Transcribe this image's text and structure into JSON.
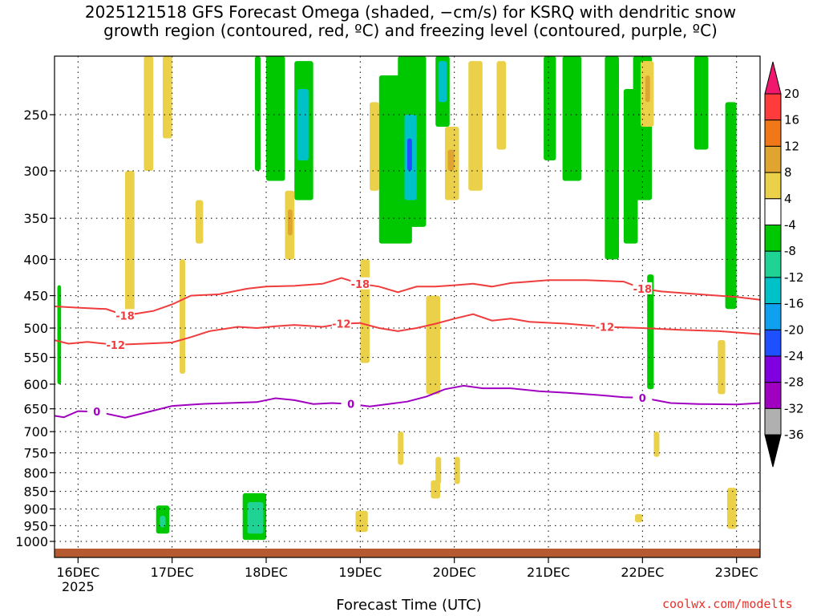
{
  "title_lines": [
    "2025121518 GFS Forecast Omega (shaded, −cm/s) for KSRQ with dendritic snow",
    "growth region (contoured, red, ºC) and freezing level (contoured, purple, ºC)"
  ],
  "credit": "coolwx.com/modelts",
  "chart_data": {
    "type": "heatmap",
    "title": "2025121518 GFS Forecast Omega (shaded, −cm/s) for KSRQ with dendritic snow growth region (contoured, red, ºC) and freezing level (contoured, purple, ºC)",
    "xlabel": "Forecast Time (UTC)",
    "ylabel": "",
    "x_ticks": [
      "16DEC",
      "17DEC",
      "18DEC",
      "19DEC",
      "20DEC",
      "21DEC",
      "22DEC",
      "23DEC"
    ],
    "x_tick_days": [
      16,
      17,
      18,
      19,
      20,
      21,
      22,
      23
    ],
    "x_year_label": "2025",
    "xlim_days": [
      15.75,
      23.25
    ],
    "y_ticks": [
      250,
      300,
      350,
      400,
      450,
      500,
      550,
      600,
      650,
      700,
      750,
      800,
      850,
      900,
      950,
      1000
    ],
    "ylim_hpa": [
      200,
      1030
    ],
    "y_scale": "log",
    "grid": true,
    "colorbar": {
      "labels": [
        "20",
        "16",
        "12",
        "8",
        "4",
        "-4",
        "-8",
        "-12",
        "-16",
        "-20",
        "-24",
        "-28",
        "-32",
        "-36"
      ],
      "colors": [
        "#ff3b3b",
        "#f07818",
        "#e0a530",
        "#ebd14a",
        "#ffffff",
        "#00c800",
        "#1fd394",
        "#00c0c8",
        "#10a0f0",
        "#1f50ff",
        "#8000e0",
        "#a000c0",
        "#b0b0b0"
      ],
      "top_arrow_color": "#f0186e",
      "bottom_arrow_color": "#000000"
    },
    "contours": [
      {
        "label": "-18",
        "color": "#f03c3c",
        "points": [
          [
            15.75,
            466
          ],
          [
            16.0,
            468
          ],
          [
            16.3,
            470
          ],
          [
            16.5,
            480
          ],
          [
            16.8,
            473
          ],
          [
            17.0,
            463
          ],
          [
            17.2,
            450
          ],
          [
            17.5,
            448
          ],
          [
            17.8,
            440
          ],
          [
            18.0,
            437
          ],
          [
            18.3,
            436
          ],
          [
            18.6,
            433
          ],
          [
            18.8,
            425
          ],
          [
            19.0,
            433
          ],
          [
            19.2,
            437
          ],
          [
            19.4,
            445
          ],
          [
            19.6,
            437
          ],
          [
            19.8,
            437
          ],
          [
            20.0,
            435
          ],
          [
            20.2,
            433
          ],
          [
            20.4,
            437
          ],
          [
            20.6,
            432
          ],
          [
            20.8,
            430
          ],
          [
            21.0,
            428
          ],
          [
            21.4,
            428
          ],
          [
            21.8,
            430
          ],
          [
            22.0,
            440
          ],
          [
            22.2,
            444
          ],
          [
            22.6,
            448
          ],
          [
            23.0,
            452
          ],
          [
            23.25,
            456
          ]
        ]
      },
      {
        "label": "-12",
        "color": "#f03c3c",
        "points": [
          [
            15.75,
            520
          ],
          [
            15.9,
            526
          ],
          [
            16.1,
            523
          ],
          [
            16.4,
            528
          ],
          [
            16.7,
            526
          ],
          [
            17.0,
            524
          ],
          [
            17.2,
            515
          ],
          [
            17.4,
            505
          ],
          [
            17.7,
            498
          ],
          [
            17.9,
            500
          ],
          [
            18.1,
            497
          ],
          [
            18.3,
            495
          ],
          [
            18.6,
            498
          ],
          [
            18.8,
            493
          ],
          [
            19.0,
            492
          ],
          [
            19.2,
            500
          ],
          [
            19.4,
            505
          ],
          [
            19.6,
            500
          ],
          [
            19.8,
            493
          ],
          [
            20.0,
            485
          ],
          [
            20.2,
            478
          ],
          [
            20.4,
            488
          ],
          [
            20.6,
            485
          ],
          [
            20.8,
            490
          ],
          [
            21.2,
            493
          ],
          [
            21.6,
            498
          ],
          [
            22.0,
            500
          ],
          [
            22.4,
            503
          ],
          [
            22.8,
            505
          ],
          [
            23.25,
            510
          ]
        ]
      },
      {
        "label": "0",
        "color": "#a000c0",
        "points": [
          [
            15.75,
            665
          ],
          [
            15.85,
            668
          ],
          [
            16.0,
            655
          ],
          [
            16.2,
            656
          ],
          [
            16.5,
            669
          ],
          [
            16.8,
            654
          ],
          [
            17.0,
            644
          ],
          [
            17.3,
            640
          ],
          [
            17.6,
            638
          ],
          [
            17.9,
            636
          ],
          [
            18.1,
            628
          ],
          [
            18.3,
            632
          ],
          [
            18.5,
            640
          ],
          [
            18.7,
            638
          ],
          [
            18.9,
            640
          ],
          [
            19.1,
            645
          ],
          [
            19.3,
            640
          ],
          [
            19.5,
            635
          ],
          [
            19.7,
            625
          ],
          [
            19.9,
            610
          ],
          [
            20.1,
            603
          ],
          [
            20.3,
            608
          ],
          [
            20.6,
            608
          ],
          [
            20.9,
            614
          ],
          [
            21.2,
            617
          ],
          [
            21.5,
            621
          ],
          [
            21.8,
            626
          ],
          [
            22.0,
            627
          ],
          [
            22.3,
            638
          ],
          [
            22.6,
            640
          ],
          [
            23.0,
            641
          ],
          [
            23.25,
            638
          ]
        ]
      }
    ],
    "color_regions": [
      {
        "t0": 16.83,
        "t1": 16.97,
        "p0": 890,
        "p1": 975,
        "color": "#00c800"
      },
      {
        "t0": 16.87,
        "t1": 16.93,
        "p0": 920,
        "p1": 955,
        "color": "#1fd394"
      },
      {
        "t0": 17.75,
        "t1": 18.0,
        "p0": 855,
        "p1": 995,
        "color": "#00c800"
      },
      {
        "t0": 17.8,
        "t1": 17.97,
        "p0": 880,
        "p1": 975,
        "color": "#1fd394"
      },
      {
        "t0": 18.95,
        "t1": 19.08,
        "p0": 905,
        "p1": 970,
        "color": "#ebd14a"
      },
      {
        "t0": 15.78,
        "t1": 15.82,
        "p0": 435,
        "p1": 600,
        "color": "#00c800"
      },
      {
        "t0": 17.88,
        "t1": 17.94,
        "p0": 200,
        "p1": 300,
        "color": "#00c800"
      },
      {
        "t0": 18.0,
        "t1": 18.2,
        "p0": 200,
        "p1": 310,
        "color": "#00c800"
      },
      {
        "t0": 18.3,
        "t1": 18.5,
        "p0": 210,
        "p1": 330,
        "color": "#00c800"
      },
      {
        "t0": 18.33,
        "t1": 18.45,
        "p0": 230,
        "p1": 290,
        "color": "#00c0c8"
      },
      {
        "t0": 19.2,
        "t1": 19.55,
        "p0": 220,
        "p1": 380,
        "color": "#00c800"
      },
      {
        "t0": 19.4,
        "t1": 19.7,
        "p0": 200,
        "p1": 360,
        "color": "#00c800"
      },
      {
        "t0": 19.47,
        "t1": 19.6,
        "p0": 250,
        "p1": 330,
        "color": "#00c0c8"
      },
      {
        "t0": 19.5,
        "t1": 19.55,
        "p0": 270,
        "p1": 300,
        "color": "#1f50ff"
      },
      {
        "t0": 19.8,
        "t1": 19.95,
        "p0": 200,
        "p1": 260,
        "color": "#00c800"
      },
      {
        "t0": 19.83,
        "t1": 19.92,
        "p0": 210,
        "p1": 240,
        "color": "#00c0c8"
      },
      {
        "t0": 20.95,
        "t1": 21.08,
        "p0": 200,
        "p1": 290,
        "color": "#00c800"
      },
      {
        "t0": 21.15,
        "t1": 21.35,
        "p0": 200,
        "p1": 310,
        "color": "#00c800"
      },
      {
        "t0": 21.6,
        "t1": 21.75,
        "p0": 200,
        "p1": 400,
        "color": "#00c800"
      },
      {
        "t0": 21.8,
        "t1": 21.95,
        "p0": 230,
        "p1": 380,
        "color": "#00c800"
      },
      {
        "t0": 21.9,
        "t1": 22.1,
        "p0": 200,
        "p1": 330,
        "color": "#00c800"
      },
      {
        "t0": 22.05,
        "t1": 22.12,
        "p0": 420,
        "p1": 610,
        "color": "#00c800"
      },
      {
        "t0": 22.55,
        "t1": 22.7,
        "p0": 200,
        "p1": 280,
        "color": "#00c800"
      },
      {
        "t0": 22.88,
        "t1": 23.0,
        "p0": 240,
        "p1": 470,
        "color": "#00c800"
      },
      {
        "t0": 17.08,
        "t1": 17.14,
        "p0": 400,
        "p1": 580,
        "color": "#ebd14a"
      },
      {
        "t0": 16.5,
        "t1": 16.6,
        "p0": 300,
        "p1": 480,
        "color": "#ebd14a"
      },
      {
        "t0": 16.7,
        "t1": 16.8,
        "p0": 200,
        "p1": 300,
        "color": "#ebd14a"
      },
      {
        "t0": 16.9,
        "t1": 17.0,
        "p0": 200,
        "p1": 270,
        "color": "#ebd14a"
      },
      {
        "t0": 17.25,
        "t1": 17.33,
        "p0": 330,
        "p1": 380,
        "color": "#ebd14a"
      },
      {
        "t0": 18.2,
        "t1": 18.3,
        "p0": 320,
        "p1": 400,
        "color": "#ebd14a"
      },
      {
        "t0": 18.23,
        "t1": 18.28,
        "p0": 340,
        "p1": 370,
        "color": "#e0a530"
      },
      {
        "t0": 19.1,
        "t1": 19.2,
        "p0": 240,
        "p1": 320,
        "color": "#ebd14a"
      },
      {
        "t0": 19.0,
        "t1": 19.1,
        "p0": 400,
        "p1": 560,
        "color": "#ebd14a"
      },
      {
        "t0": 19.7,
        "t1": 19.85,
        "p0": 450,
        "p1": 620,
        "color": "#ebd14a"
      },
      {
        "t0": 19.9,
        "t1": 20.05,
        "p0": 260,
        "p1": 330,
        "color": "#ebd14a"
      },
      {
        "t0": 19.93,
        "t1": 20.0,
        "p0": 280,
        "p1": 300,
        "color": "#e0a530"
      },
      {
        "t0": 20.15,
        "t1": 20.3,
        "p0": 210,
        "p1": 320,
        "color": "#ebd14a"
      },
      {
        "t0": 20.45,
        "t1": 20.55,
        "p0": 210,
        "p1": 280,
        "color": "#ebd14a"
      },
      {
        "t0": 21.98,
        "t1": 22.12,
        "p0": 210,
        "p1": 260,
        "color": "#ebd14a"
      },
      {
        "t0": 22.03,
        "t1": 22.08,
        "p0": 220,
        "p1": 240,
        "color": "#e0a530"
      },
      {
        "t0": 22.8,
        "t1": 22.88,
        "p0": 520,
        "p1": 620,
        "color": "#ebd14a"
      },
      {
        "t0": 22.9,
        "t1": 23.0,
        "p0": 840,
        "p1": 960,
        "color": "#ebd14a"
      },
      {
        "t0": 20.0,
        "t1": 20.06,
        "p0": 760,
        "p1": 830,
        "color": "#ebd14a"
      },
      {
        "t0": 19.8,
        "t1": 19.86,
        "p0": 760,
        "p1": 830,
        "color": "#ebd14a"
      },
      {
        "t0": 22.12,
        "t1": 22.18,
        "p0": 700,
        "p1": 760,
        "color": "#ebd14a"
      },
      {
        "t0": 21.92,
        "t1": 22.0,
        "p0": 915,
        "p1": 940,
        "color": "#ebd14a"
      },
      {
        "t0": 19.4,
        "t1": 19.46,
        "p0": 700,
        "p1": 780,
        "color": "#ebd14a"
      },
      {
        "t0": 19.75,
        "t1": 19.85,
        "p0": 820,
        "p1": 870,
        "color": "#ebd14a"
      }
    ],
    "ground_color": "#b55a30"
  }
}
